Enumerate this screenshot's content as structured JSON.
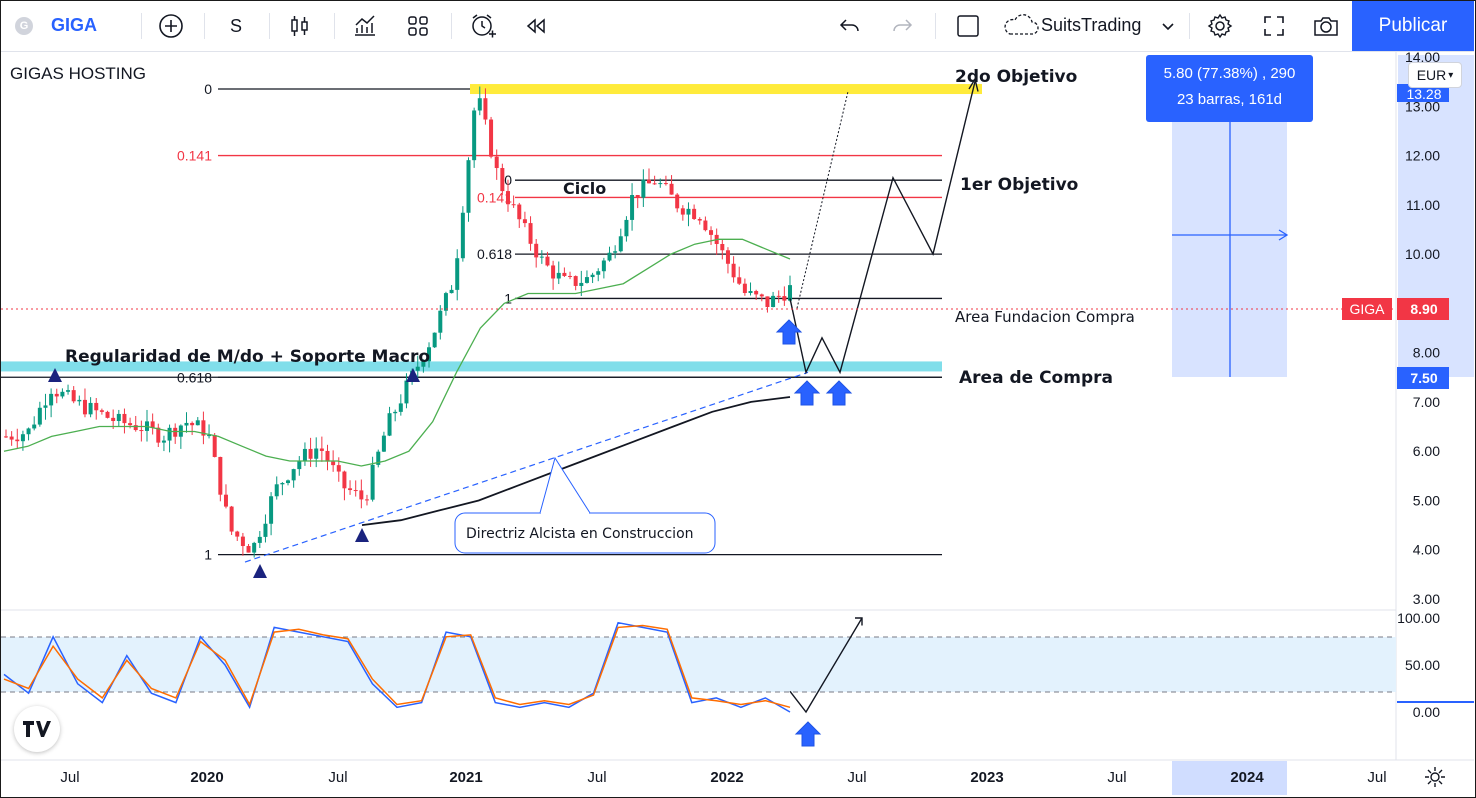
{
  "toolbar": {
    "symbol": "GIGA",
    "symbol_badge": "G",
    "interval": "S",
    "user": "SuitsTrading",
    "publish_label": "Publicar"
  },
  "chart": {
    "instrument_title": "GIGAS HOSTING",
    "currency": "EUR",
    "price_labels": [
      {
        "symbol": "GIGA",
        "value": "8.90"
      },
      {
        "value": "7.50"
      },
      {
        "value": "13.28"
      }
    ],
    "measure": {
      "line1": "5.80 (77.38%) , 290",
      "line2": "23 barras, 161d"
    },
    "annotations": {
      "second_target": "2do Objetivo",
      "first_target": "1er Objetivo",
      "cycle": "Ciclo",
      "foundation_area": "Area Fundacion Compra",
      "buy_area": "Area de Compra",
      "regularity": "Regularidad de M/do + Soporte Macro",
      "trendline": "Directriz Alcista en Construccion"
    },
    "fib_big": [
      {
        "label": "0",
        "price": 13.35
      },
      {
        "label": "0.141",
        "price": 12.0
      },
      {
        "label": "0.618",
        "price": 7.5
      },
      {
        "label": "1",
        "price": 3.9
      }
    ],
    "fib_small": [
      {
        "label": "0",
        "price": 11.5
      },
      {
        "label": "0.141",
        "price": 11.15
      },
      {
        "label": "0.618",
        "price": 10.0
      },
      {
        "label": "1",
        "price": 9.1
      }
    ]
  },
  "chart_data": {
    "type": "line",
    "price_axis": {
      "ticks": [
        "14.00",
        "13.00",
        "12.00",
        "11.00",
        "10.00",
        "9.00",
        "8.00",
        "7.00",
        "6.00",
        "5.00",
        "4.00",
        "3.00"
      ],
      "min": 3.0,
      "max": 14.0
    },
    "oscillator_axis": {
      "ticks": [
        "100.00",
        "50.00",
        "0.00"
      ],
      "bands": [
        80,
        20
      ]
    },
    "time_axis": [
      "Jul",
      "2020",
      "Jul",
      "2021",
      "Jul",
      "2022",
      "Jul",
      "2023",
      "Jul",
      "2024",
      "Jul"
    ],
    "series": [
      {
        "values": [
          6.3,
          6.4,
          7.3,
          7.0,
          6.8,
          6.6,
          6.5,
          6.3,
          6.6,
          6.4,
          4.4,
          4.0,
          5.2,
          5.8,
          6.1,
          5.3,
          5.0,
          6.5,
          7.4,
          8.3,
          9.5,
          13.3,
          11.5,
          10.6,
          9.8,
          9.4,
          9.5,
          10.0,
          11.2,
          11.5,
          11.0,
          10.8,
          10.0,
          9.2,
          9.0,
          9.3
        ]
      },
      {
        "values": [
          6.0,
          6.1,
          6.3,
          6.4,
          6.5,
          6.5,
          6.5,
          6.4,
          6.4,
          6.3,
          6.1,
          5.9,
          5.8,
          5.8,
          5.8,
          5.7,
          5.8,
          6.0,
          6.6,
          7.6,
          8.5,
          9.0,
          9.2,
          9.2,
          9.2,
          9.3,
          9.4,
          9.7,
          10.0,
          10.2,
          10.3,
          10.3,
          10.1,
          9.9
        ]
      },
      {
        "values": [
          4.5,
          4.6,
          4.8,
          5.0,
          5.3,
          5.6,
          5.9,
          6.2,
          6.5,
          6.8,
          7.0,
          7.1
        ]
      },
      {
        "values": [
          40,
          20,
          80,
          30,
          10,
          60,
          20,
          10,
          80,
          50,
          5,
          90,
          85,
          80,
          75,
          30,
          5,
          10,
          85,
          80,
          10,
          5,
          10,
          5,
          20,
          95,
          90,
          85,
          10,
          15,
          5,
          15,
          0
        ]
      },
      {
        "values": [
          35,
          25,
          70,
          35,
          15,
          55,
          25,
          15,
          75,
          55,
          8,
          85,
          88,
          82,
          78,
          35,
          8,
          12,
          80,
          82,
          15,
          8,
          12,
          8,
          18,
          90,
          92,
          88,
          15,
          12,
          8,
          12,
          5
        ]
      }
    ]
  }
}
